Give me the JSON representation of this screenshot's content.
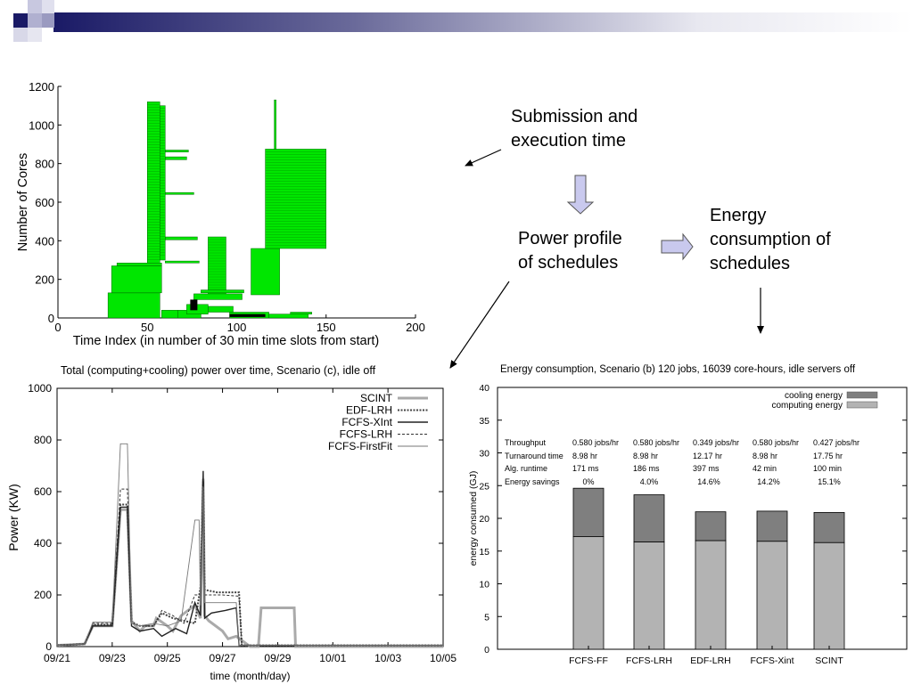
{
  "colors": {
    "header_accent": "#1a1a66",
    "schedule_fill": "#00e600",
    "cooling": "#7f7f7f",
    "computing": "#b3b3b3"
  },
  "annotations": {
    "submission": [
      "Submission and",
      "execution time"
    ],
    "power_profile": [
      "Power profile",
      "of schedules"
    ],
    "energy_consumption": [
      "Energy",
      "consumption of",
      "schedules"
    ]
  },
  "chart_data": [
    {
      "type": "bar",
      "orientation": "horizontal-intervals",
      "title": "",
      "xlabel": "Time Index (in number of 30 min time slots from start)",
      "ylabel": "Number of Cores",
      "xlim": [
        0,
        200
      ],
      "ylim": [
        0,
        1200
      ],
      "xticks": [
        0,
        50,
        100,
        150,
        200
      ],
      "yticks": [
        0,
        200,
        400,
        600,
        800,
        1000,
        1200
      ],
      "jobs": [
        {
          "start": 28,
          "end": 57,
          "cores_from": 0,
          "cores_to": 130
        },
        {
          "start": 30,
          "end": 58,
          "cores_from": 130,
          "cores_to": 270
        },
        {
          "start": 33,
          "end": 58,
          "cores_from": 270,
          "cores_to": 285
        },
        {
          "start": 50,
          "end": 57,
          "cores_from": 285,
          "cores_to": 1120
        },
        {
          "start": 57,
          "end": 60,
          "cores_from": 300,
          "cores_to": 1100
        },
        {
          "start": 60,
          "end": 73,
          "cores_from": 860,
          "cores_to": 870
        },
        {
          "start": 60,
          "end": 72,
          "cores_from": 820,
          "cores_to": 835
        },
        {
          "start": 60,
          "end": 76,
          "cores_from": 640,
          "cores_to": 650
        },
        {
          "start": 60,
          "end": 78,
          "cores_from": 405,
          "cores_to": 420
        },
        {
          "start": 60,
          "end": 79,
          "cores_from": 285,
          "cores_to": 295
        },
        {
          "start": 58,
          "end": 67,
          "cores_from": 0,
          "cores_to": 40
        },
        {
          "start": 67,
          "end": 80,
          "cores_from": 0,
          "cores_to": 40
        },
        {
          "start": 72,
          "end": 84,
          "cores_from": 20,
          "cores_to": 70
        },
        {
          "start": 84,
          "end": 94,
          "cores_from": 120,
          "cores_to": 420
        },
        {
          "start": 84,
          "end": 98,
          "cores_from": 30,
          "cores_to": 60
        },
        {
          "start": 76,
          "end": 103,
          "cores_from": 95,
          "cores_to": 125
        },
        {
          "start": 80,
          "end": 104,
          "cores_from": 130,
          "cores_to": 145
        },
        {
          "start": 96,
          "end": 118,
          "cores_from": 0,
          "cores_to": 30
        },
        {
          "start": 108,
          "end": 124,
          "cores_from": 120,
          "cores_to": 360
        },
        {
          "start": 116,
          "end": 150,
          "cores_from": 360,
          "cores_to": 875
        },
        {
          "start": 121,
          "end": 122,
          "cores_from": 875,
          "cores_to": 1130
        },
        {
          "start": 118,
          "end": 140,
          "cores_from": 0,
          "cores_to": 20
        },
        {
          "start": 130,
          "end": 142,
          "cores_from": 20,
          "cores_to": 30
        }
      ],
      "black_jobs": [
        {
          "start": 74,
          "end": 78,
          "cores_from": 40,
          "cores_to": 95
        },
        {
          "start": 96,
          "end": 116,
          "cores_from": 5,
          "cores_to": 20
        }
      ]
    },
    {
      "type": "line",
      "title": "Total (computing+cooling) power over time, Scenario (c), idle off",
      "xlabel": "time (month/day)",
      "ylabel": "Power (KW)",
      "ylim": [
        0,
        1000
      ],
      "xlim": [
        0,
        14
      ],
      "yticks": [
        0,
        200,
        400,
        600,
        800,
        1000
      ],
      "xtick_labels": [
        "09/21",
        "09/23",
        "09/25",
        "09/27",
        "09/29",
        "10/01",
        "10/03",
        "10/05"
      ],
      "legend": "top-right",
      "series": [
        {
          "name": "SCINT",
          "style": "thick-gray",
          "points": [
            [
              0,
              5
            ],
            [
              1,
              10
            ],
            [
              1.3,
              80
            ],
            [
              2,
              80
            ],
            [
              2.3,
              530
            ],
            [
              2.55,
              530
            ],
            [
              2.7,
              100
            ],
            [
              3,
              60
            ],
            [
              3.2,
              80
            ],
            [
              3.5,
              80
            ],
            [
              3.6,
              110
            ],
            [
              4,
              80
            ],
            [
              4.2,
              60
            ],
            [
              4.5,
              120
            ],
            [
              5,
              160
            ],
            [
              5.2,
              110
            ],
            [
              5.3,
              650
            ],
            [
              5.35,
              120
            ],
            [
              5.5,
              100
            ],
            [
              6,
              60
            ],
            [
              6.2,
              30
            ],
            [
              6.5,
              40
            ],
            [
              7,
              0
            ],
            [
              7.3,
              0
            ],
            [
              7.4,
              150
            ],
            [
              8,
              150
            ],
            [
              8.6,
              150
            ],
            [
              8.65,
              0
            ],
            [
              14,
              0
            ]
          ]
        },
        {
          "name": "EDF-LRH",
          "style": "dotted-dark",
          "points": [
            [
              0,
              5
            ],
            [
              1,
              10
            ],
            [
              1.3,
              85
            ],
            [
              2,
              85
            ],
            [
              2.3,
              550
            ],
            [
              2.55,
              550
            ],
            [
              2.7,
              95
            ],
            [
              3,
              80
            ],
            [
              3.5,
              80
            ],
            [
              3.8,
              130
            ],
            [
              4.2,
              110
            ],
            [
              4.6,
              100
            ],
            [
              5,
              90
            ],
            [
              5.2,
              230
            ],
            [
              5.3,
              640
            ],
            [
              5.35,
              220
            ],
            [
              5.8,
              210
            ],
            [
              6.6,
              210
            ],
            [
              6.7,
              5
            ],
            [
              14,
              5
            ]
          ]
        },
        {
          "name": "FCFS-XInt",
          "style": "solid-dark",
          "points": [
            [
              0,
              5
            ],
            [
              1,
              10
            ],
            [
              1.3,
              80
            ],
            [
              2,
              80
            ],
            [
              2.3,
              540
            ],
            [
              2.55,
              540
            ],
            [
              2.7,
              80
            ],
            [
              3,
              60
            ],
            [
              3.5,
              70
            ],
            [
              3.8,
              40
            ],
            [
              4.3,
              70
            ],
            [
              4.7,
              50
            ],
            [
              5,
              170
            ],
            [
              5.2,
              120
            ],
            [
              5.3,
              680
            ],
            [
              5.35,
              110
            ],
            [
              5.6,
              130
            ],
            [
              6.1,
              140
            ],
            [
              6.5,
              150
            ],
            [
              6.6,
              5
            ],
            [
              14,
              5
            ]
          ]
        },
        {
          "name": "FCFS-LRH",
          "style": "dashed-thin",
          "points": [
            [
              0,
              5
            ],
            [
              1,
              10
            ],
            [
              1.3,
              90
            ],
            [
              2,
              90
            ],
            [
              2.3,
              610
            ],
            [
              2.55,
              610
            ],
            [
              2.7,
              90
            ],
            [
              3,
              80
            ],
            [
              3.5,
              80
            ],
            [
              3.8,
              140
            ],
            [
              4.2,
              120
            ],
            [
              4.6,
              90
            ],
            [
              5,
              200
            ],
            [
              5.2,
              200
            ],
            [
              5.3,
              620
            ],
            [
              5.35,
              200
            ],
            [
              6,
              200
            ],
            [
              6.6,
              195
            ],
            [
              6.7,
              5
            ],
            [
              14,
              5
            ]
          ]
        },
        {
          "name": "FCFS-FirstFit",
          "style": "thin-gray",
          "points": [
            [
              0,
              5
            ],
            [
              1,
              10
            ],
            [
              1.3,
              95
            ],
            [
              2,
              95
            ],
            [
              2.3,
              785
            ],
            [
              2.55,
              785
            ],
            [
              2.7,
              90
            ],
            [
              3,
              80
            ],
            [
              3.5,
              90
            ],
            [
              4,
              80
            ],
            [
              4.5,
              100
            ],
            [
              5,
              490
            ],
            [
              5.15,
              490
            ],
            [
              5.2,
              160
            ],
            [
              5.3,
              620
            ],
            [
              5.35,
              170
            ],
            [
              6,
              170
            ],
            [
              6.5,
              170
            ],
            [
              6.6,
              5
            ],
            [
              14,
              5
            ]
          ]
        }
      ]
    },
    {
      "type": "bar",
      "stacked": true,
      "title": "Energy consumption, Scenario (b) 120 jobs, 16039 core-hours, idle servers off",
      "xlabel": "",
      "ylabel": "energy consumed (GJ)",
      "ylim": [
        0,
        40
      ],
      "yticks": [
        0,
        5,
        10,
        15,
        20,
        25,
        30,
        35,
        40
      ],
      "legend": "top-right",
      "categories": [
        "FCFS-FF",
        "FCFS-LRH",
        "EDF-LRH",
        "FCFS-Xint",
        "SCINT"
      ],
      "series": [
        {
          "name": "computing energy",
          "values": [
            17.2,
            16.4,
            16.6,
            16.5,
            16.3
          ]
        },
        {
          "name": "cooling energy",
          "values": [
            7.4,
            7.2,
            4.4,
            4.6,
            4.6
          ]
        }
      ],
      "table": {
        "row_labels": [
          "Throughput",
          "Turnaround time",
          "Alg. runtime",
          "Energy savings"
        ],
        "columns": [
          [
            "0.580 jobs/hr",
            "8.98 hr",
            "171 ms",
            "0%"
          ],
          [
            "0.580 jobs/hr",
            "8.98 hr",
            "186 ms",
            "4.0%"
          ],
          [
            "0.349 jobs/hr",
            "12.17 hr",
            "397 ms",
            "14.6%"
          ],
          [
            "0.580 jobs/hr",
            "8.98 hr",
            "42 min",
            "14.2%"
          ],
          [
            "0.427 jobs/hr",
            "17.75 hr",
            "100 min",
            "15.1%"
          ]
        ]
      }
    }
  ]
}
